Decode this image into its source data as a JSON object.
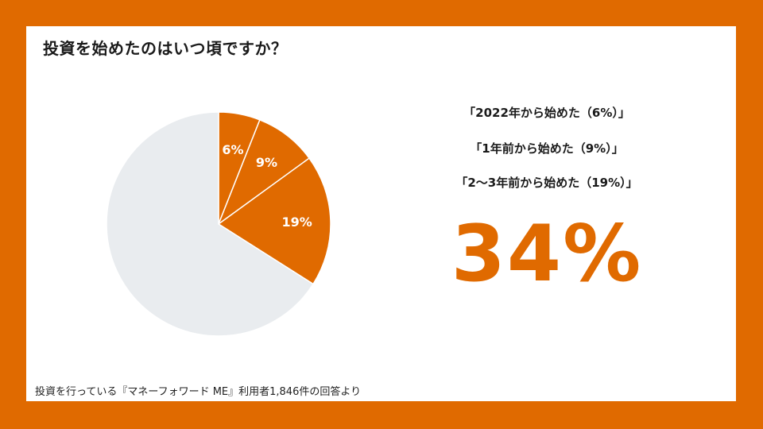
{
  "title": "投資を始めたのはいつ頃ですか？",
  "legend_lines": [
    "「2022年から始めた（6%）」",
    "「1年前から始めた（9%）」",
    "「2～3年前から始めた（19%）」"
  ],
  "highlight_value": "34%",
  "footnote": "投資を行っている『マネーフォワード ME』利用者1,846件の回答より",
  "colors": {
    "accent": "#e06a00",
    "rest": "#e9ecef",
    "background": "#ffffff"
  },
  "chart_data": {
    "type": "pie",
    "slices": [
      {
        "label": "2022年から始めた",
        "value": 6,
        "data_label": "6%",
        "color": "#e06a00"
      },
      {
        "label": "1年前から始めた",
        "value": 9,
        "data_label": "9%",
        "color": "#e06a00"
      },
      {
        "label": "2～3年前から始めた",
        "value": 19,
        "data_label": "19%",
        "color": "#e06a00"
      },
      {
        "label": "",
        "value": 66,
        "data_label": "",
        "color": "#e9ecef"
      }
    ]
  }
}
